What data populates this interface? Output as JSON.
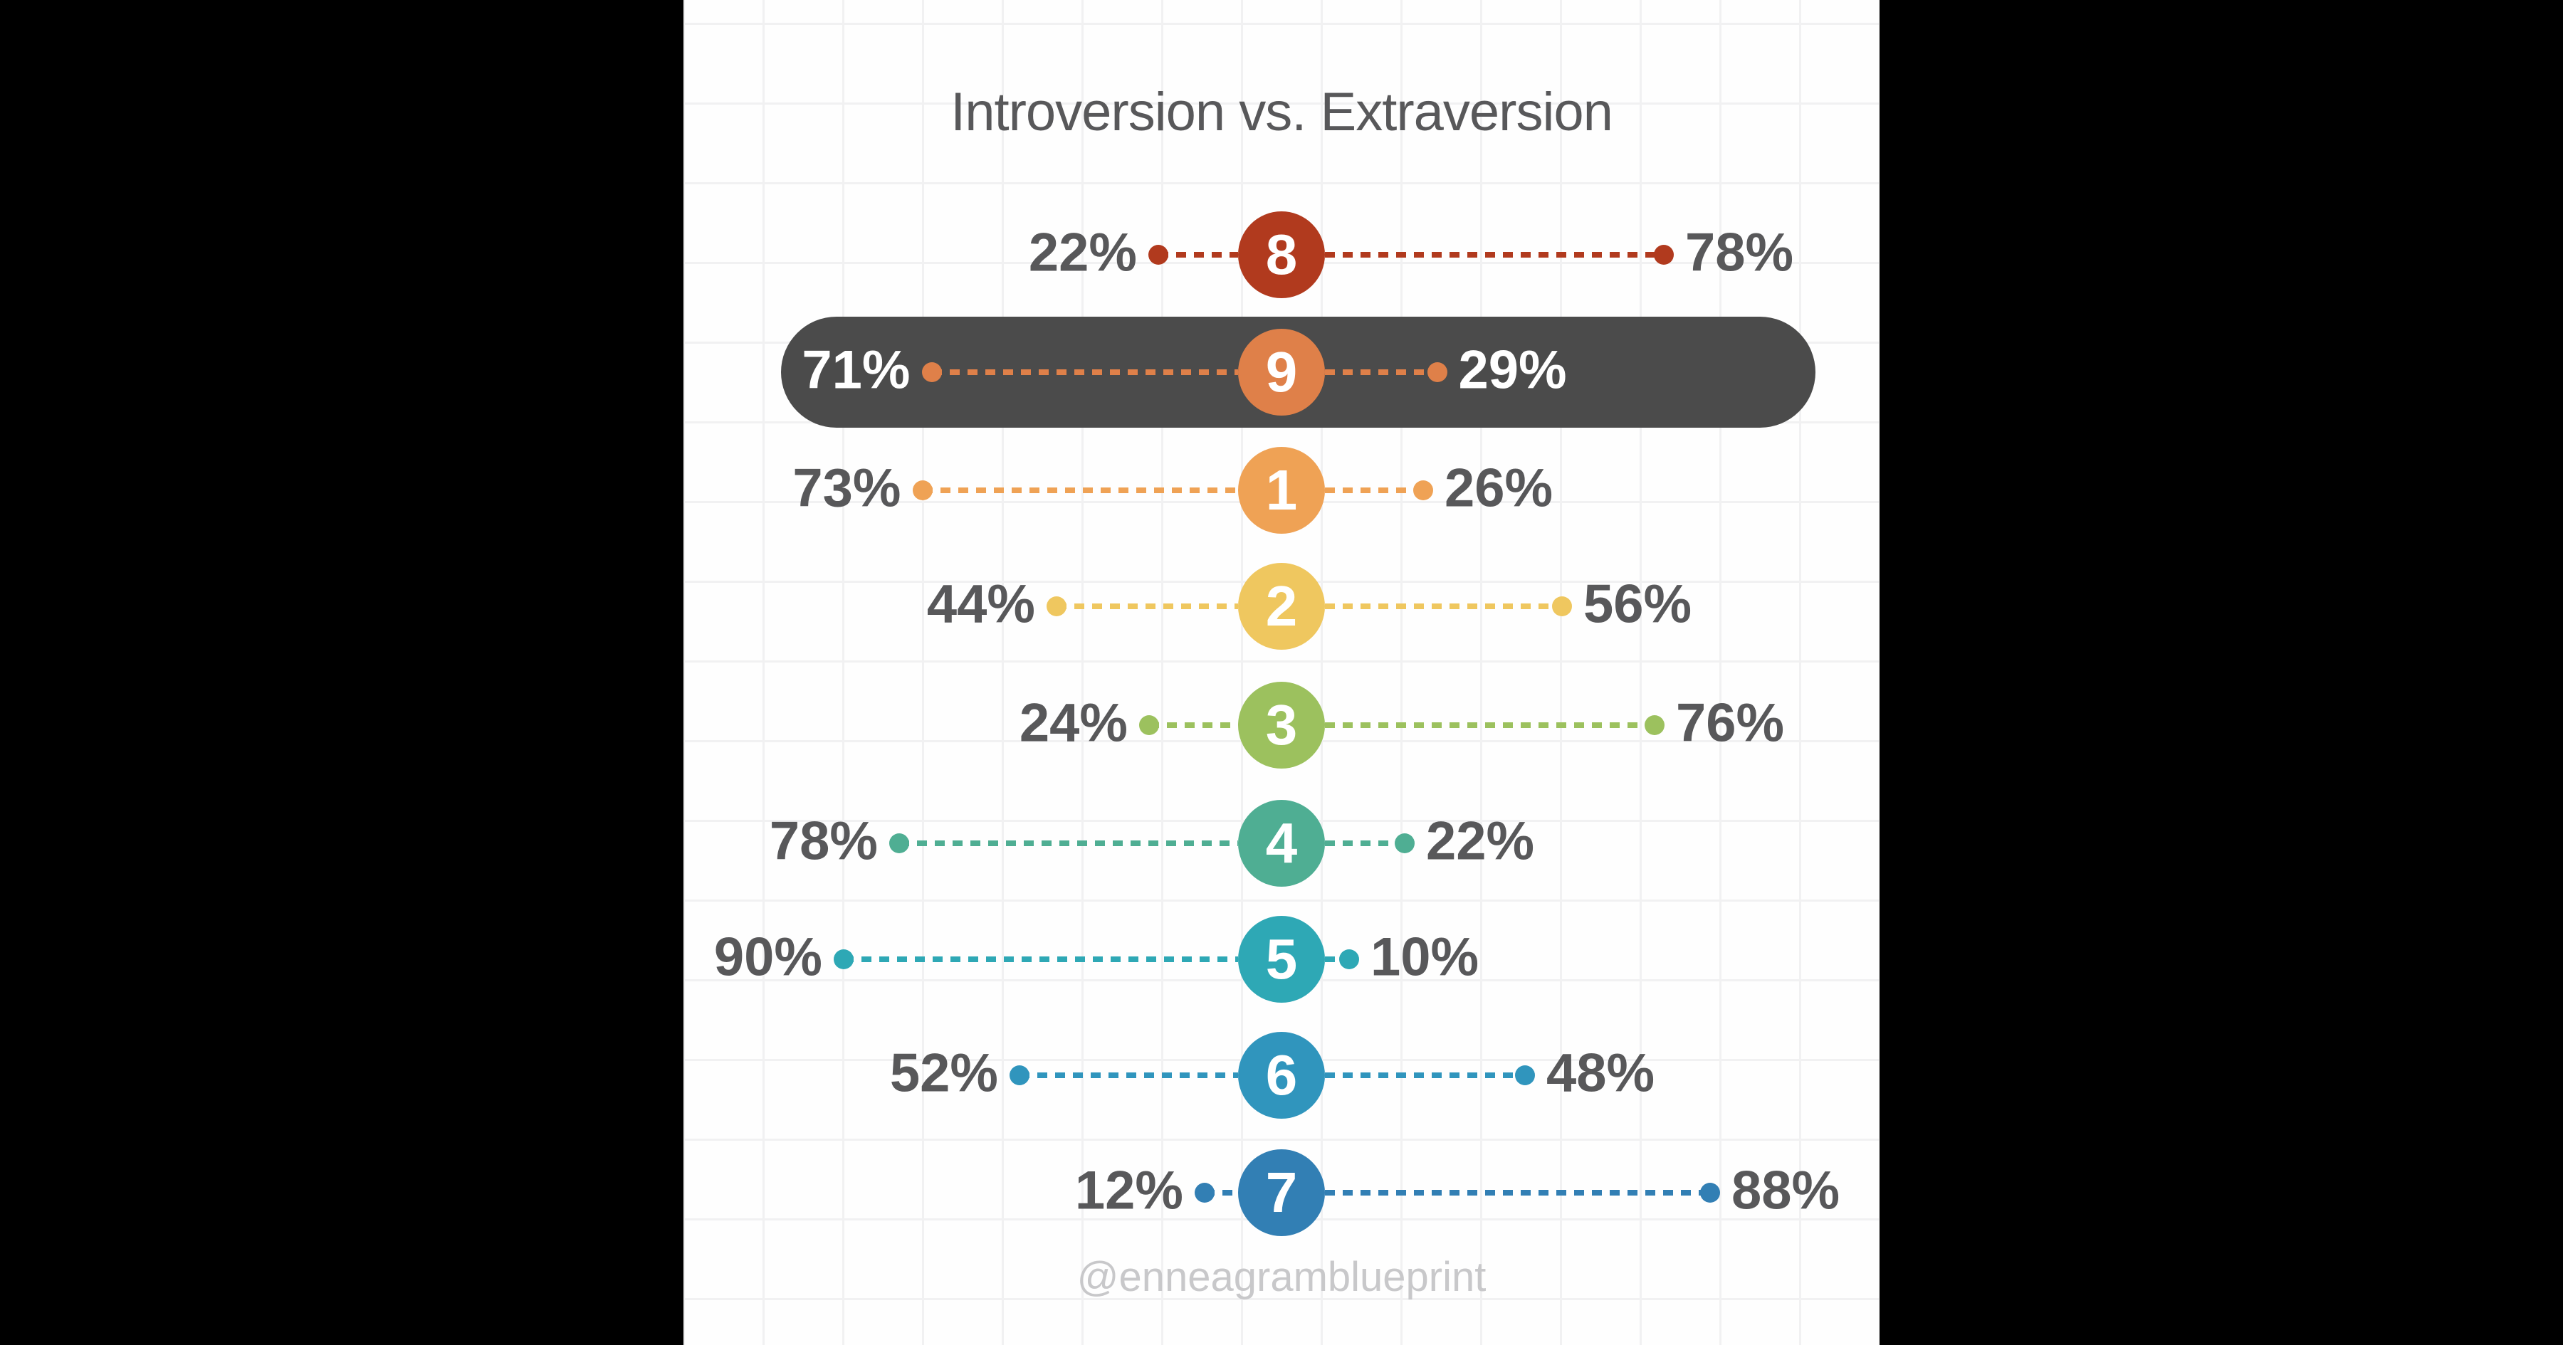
{
  "page": {
    "background_color": "#000000",
    "card_background_color": "#fefefe",
    "grid_color": "#f1f1f2"
  },
  "chart_data": {
    "type": "dumbbell",
    "title": "Introversion vs. Extraversion",
    "watermark": "@enneagramblueprint",
    "legend_position": "none",
    "grid": true,
    "label_color": "#58585a",
    "highlight_pill_color": "#4b4b4b",
    "highlight_text_color": "#ffffff",
    "categories": [
      "8",
      "9",
      "1",
      "2",
      "3",
      "4",
      "5",
      "6",
      "7"
    ],
    "series": [
      {
        "name": "Introversion",
        "values": [
          22,
          71,
          73,
          44,
          24,
          78,
          90,
          52,
          12
        ]
      },
      {
        "name": "Extraversion",
        "values": [
          78,
          29,
          26,
          56,
          76,
          22,
          10,
          48,
          88
        ]
      }
    ],
    "rows": [
      {
        "type_number": "8",
        "left_pct": 22,
        "right_pct": 78,
        "left_label": "22%",
        "right_label": "78%",
        "color": "#b13a1e",
        "highlighted": false
      },
      {
        "type_number": "9",
        "left_pct": 71,
        "right_pct": 29,
        "left_label": "71%",
        "right_label": "29%",
        "color": "#df8049",
        "highlighted": true
      },
      {
        "type_number": "1",
        "left_pct": 73,
        "right_pct": 26,
        "left_label": "73%",
        "right_label": "26%",
        "color": "#efa255",
        "highlighted": false
      },
      {
        "type_number": "2",
        "left_pct": 44,
        "right_pct": 56,
        "left_label": "44%",
        "right_label": "56%",
        "color": "#efc75f",
        "highlighted": false
      },
      {
        "type_number": "3",
        "left_pct": 24,
        "right_pct": 76,
        "left_label": "24%",
        "right_label": "76%",
        "color": "#9cc15e",
        "highlighted": false
      },
      {
        "type_number": "4",
        "left_pct": 78,
        "right_pct": 22,
        "left_label": "78%",
        "right_label": "22%",
        "color": "#4fae93",
        "highlighted": false
      },
      {
        "type_number": "5",
        "left_pct": 90,
        "right_pct": 10,
        "left_label": "90%",
        "right_label": "10%",
        "color": "#2ea8b5",
        "highlighted": false
      },
      {
        "type_number": "6",
        "left_pct": 52,
        "right_pct": 48,
        "left_label": "52%",
        "right_label": "48%",
        "color": "#3095bd",
        "highlighted": false
      },
      {
        "type_number": "7",
        "left_pct": 12,
        "right_pct": 88,
        "left_label": "12%",
        "right_label": "88%",
        "color": "#327fb4",
        "highlighted": false
      }
    ]
  }
}
